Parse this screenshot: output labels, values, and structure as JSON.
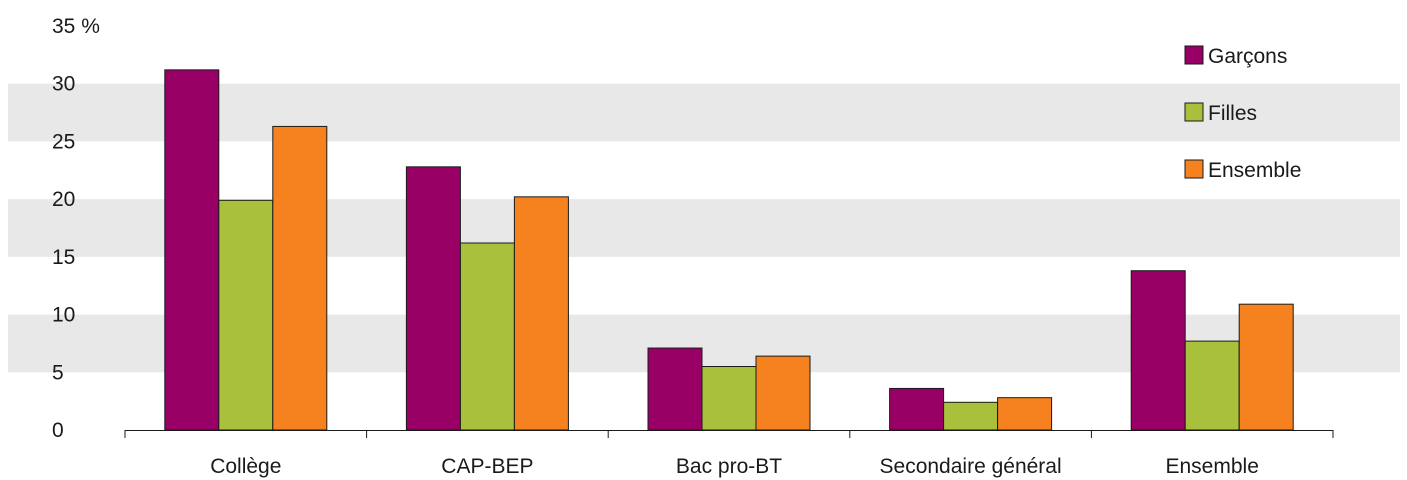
{
  "chart_data": {
    "type": "bar",
    "categories": [
      "Collège",
      "CAP-BEP",
      "Bac pro-BT",
      "Secondaire général",
      "Ensemble"
    ],
    "series": [
      {
        "name": "Garçons",
        "values": [
          31.2,
          22.8,
          7.1,
          3.6,
          13.8
        ],
        "color": "#990066"
      },
      {
        "name": "Filles",
        "values": [
          19.9,
          16.2,
          5.5,
          2.4,
          7.7
        ],
        "color": "#a8c03c"
      },
      {
        "name": "Ensemble",
        "values": [
          26.3,
          20.2,
          6.4,
          2.8,
          10.9
        ],
        "color": "#f5821f"
      }
    ],
    "yticks": [
      "0",
      "5",
      "10",
      "15",
      "20",
      "25",
      "30",
      "35 %"
    ],
    "ylim": [
      0,
      35
    ],
    "grid_bands": true,
    "band_color": "#e8e8e8",
    "legend_position": "top-right",
    "title": "",
    "xlabel": "",
    "ylabel": ""
  }
}
